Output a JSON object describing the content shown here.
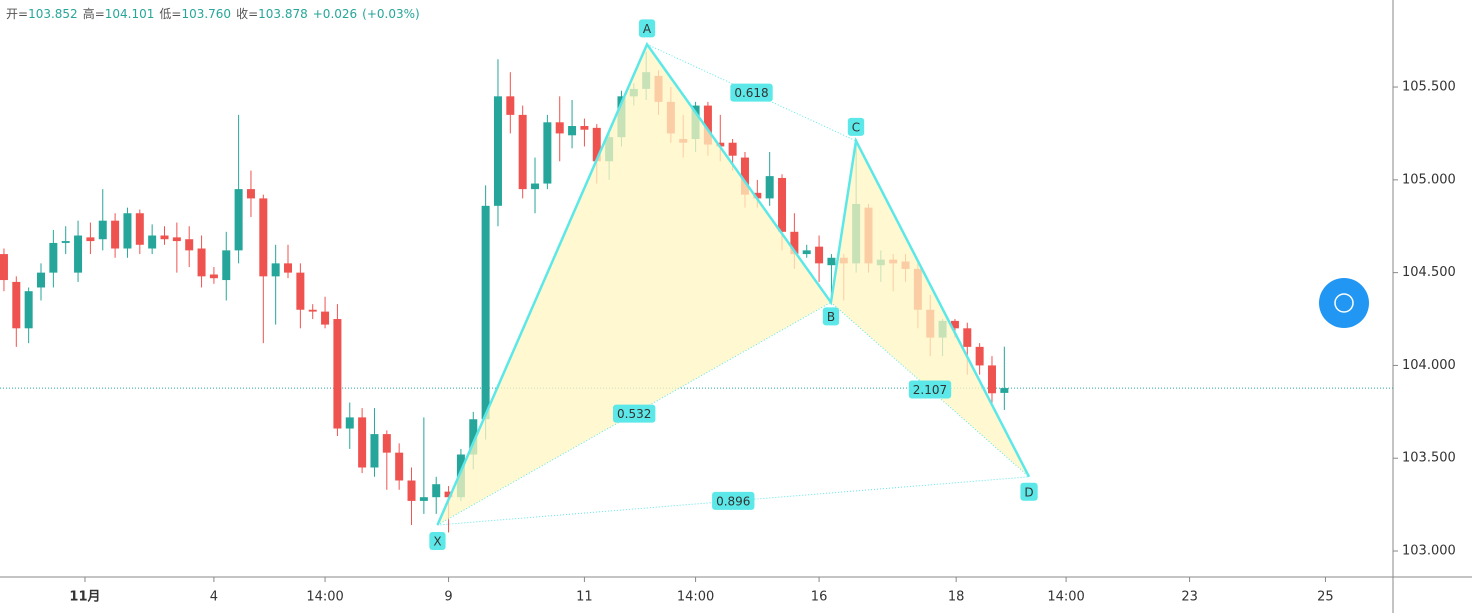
{
  "chart_data": {
    "type": "candlestick",
    "header": [
      {
        "label": "开=",
        "value": "103.852"
      },
      {
        "label": "高=",
        "value": "104.101"
      },
      {
        "label": "低=",
        "value": "103.760"
      },
      {
        "label": "收=",
        "value": "103.878"
      }
    ],
    "change": "+0.026",
    "change_pct": "(+0.03%)",
    "up_color": "#26a69a",
    "down_color": "#ef5350",
    "x": [
      0,
      1,
      2,
      3,
      4,
      5,
      6,
      7,
      8,
      9,
      10,
      11,
      12,
      13,
      14,
      15,
      16,
      17,
      18,
      19,
      20,
      21,
      22,
      23,
      24,
      25,
      26,
      27,
      28,
      29,
      30,
      31,
      32,
      33,
      34,
      35,
      36,
      37,
      38,
      39,
      40,
      41,
      42,
      43,
      44,
      45,
      46,
      47,
      48,
      49,
      50,
      51,
      52,
      53,
      54,
      55,
      56,
      57,
      58,
      59,
      60,
      61,
      62,
      63,
      64,
      65,
      66,
      67,
      68,
      69,
      70,
      71,
      72,
      73,
      74,
      75,
      76,
      77,
      78,
      79,
      80,
      81
    ],
    "open": [
      104.6,
      104.45,
      104.2,
      104.42,
      104.5,
      104.66,
      104.5,
      104.69,
      104.68,
      104.78,
      104.63,
      104.82,
      104.63,
      104.7,
      104.69,
      104.68,
      104.63,
      104.49,
      104.46,
      104.62,
      104.95,
      104.9,
      104.48,
      104.55,
      104.5,
      104.3,
      104.29,
      104.25,
      103.66,
      103.72,
      103.45,
      103.63,
      103.53,
      103.38,
      103.27,
      103.29,
      103.32,
      103.29,
      103.52,
      103.71,
      104.86,
      105.45,
      105.35,
      104.95,
      104.98,
      105.31,
      105.24,
      105.29,
      105.28,
      105.1,
      105.23,
      105.45,
      105.49,
      105.56,
      105.42,
      105.22,
      105.22,
      105.4,
      105.2,
      105.2,
      105.12,
      104.93,
      104.9,
      105.01,
      104.72,
      104.6,
      104.64,
      104.54,
      104.58,
      104.55,
      104.85,
      104.54,
      104.57,
      104.56,
      104.52,
      104.3,
      104.15,
      104.24,
      104.2,
      104.1,
      104.0,
      103.852
    ],
    "high": [
      104.63,
      104.48,
      104.42,
      104.55,
      104.73,
      104.75,
      104.78,
      104.77,
      104.95,
      104.82,
      104.85,
      104.84,
      104.76,
      104.75,
      104.77,
      104.75,
      104.7,
      104.53,
      104.72,
      105.35,
      105.05,
      104.92,
      104.65,
      104.65,
      104.55,
      104.33,
      104.37,
      104.33,
      103.8,
      103.77,
      103.77,
      103.65,
      103.58,
      103.45,
      103.72,
      103.4,
      103.35,
      103.55,
      103.75,
      104.97,
      105.65,
      105.58,
      105.4,
      105.12,
      105.35,
      105.45,
      105.43,
      105.33,
      105.3,
      105.25,
      105.48,
      105.52,
      105.69,
      105.59,
      105.5,
      105.35,
      105.42,
      105.42,
      105.35,
      105.22,
      105.15,
      105.0,
      105.15,
      105.03,
      104.82,
      104.65,
      104.7,
      104.6,
      104.6,
      105.22,
      104.87,
      104.62,
      104.6,
      104.6,
      104.57,
      104.38,
      104.25,
      104.25,
      104.23,
      104.12,
      104.05,
      104.101
    ],
    "low": [
      104.4,
      104.1,
      104.12,
      104.35,
      104.42,
      104.6,
      104.45,
      104.6,
      104.62,
      104.58,
      104.58,
      104.6,
      104.6,
      104.65,
      104.5,
      104.53,
      104.42,
      104.44,
      104.35,
      104.55,
      104.8,
      104.12,
      104.22,
      104.47,
      104.2,
      104.25,
      104.2,
      103.62,
      103.55,
      103.42,
      103.4,
      103.33,
      103.33,
      103.14,
      103.2,
      103.2,
      103.1,
      103.27,
      103.44,
      103.6,
      104.75,
      105.25,
      104.9,
      104.82,
      104.95,
      105.1,
      105.17,
      105.18,
      104.98,
      105.0,
      105.18,
      105.4,
      105.43,
      105.35,
      105.2,
      105.12,
      105.15,
      105.13,
      105.1,
      105.05,
      104.85,
      104.85,
      104.86,
      104.62,
      104.52,
      104.58,
      104.45,
      104.35,
      104.35,
      104.5,
      104.5,
      104.45,
      104.4,
      104.45,
      104.2,
      104.05,
      104.05,
      104.15,
      103.95,
      103.95,
      103.8,
      103.76
    ],
    "close": [
      104.46,
      104.2,
      104.4,
      104.5,
      104.66,
      104.67,
      104.7,
      104.67,
      104.78,
      104.63,
      104.82,
      104.65,
      104.7,
      104.68,
      104.67,
      104.62,
      104.48,
      104.47,
      104.62,
      104.95,
      104.9,
      104.48,
      104.55,
      104.5,
      104.3,
      104.29,
      104.22,
      103.66,
      103.72,
      103.45,
      103.63,
      103.53,
      103.38,
      103.27,
      103.29,
      103.36,
      103.29,
      103.52,
      103.71,
      104.86,
      105.45,
      105.35,
      104.95,
      104.98,
      105.31,
      105.25,
      105.29,
      105.27,
      105.1,
      105.23,
      105.45,
      105.49,
      105.58,
      105.42,
      105.25,
      105.2,
      105.4,
      105.19,
      105.18,
      105.13,
      104.92,
      104.9,
      105.02,
      104.72,
      104.6,
      104.62,
      104.55,
      104.58,
      104.55,
      104.87,
      104.55,
      104.57,
      104.55,
      104.52,
      104.3,
      104.15,
      104.24,
      104.2,
      104.1,
      104.0,
      103.85,
      103.878
    ],
    "last_price": 103.878,
    "xlim": [
      -0.32,
      112.47
    ],
    "xticks": [
      {
        "value": 6.56,
        "label": "11月"
      },
      {
        "value": 17,
        "label": "4"
      },
      {
        "value": 26,
        "label": "14:00"
      },
      {
        "value": 36,
        "label": "9"
      },
      {
        "value": 47,
        "label": "11"
      },
      {
        "value": 56,
        "label": "14:00"
      },
      {
        "value": 66,
        "label": "16"
      },
      {
        "value": 77.1,
        "label": "18"
      },
      {
        "value": 86,
        "label": "14:00"
      },
      {
        "value": 96,
        "label": "23"
      },
      {
        "value": 107,
        "label": "25"
      }
    ],
    "ylim": [
      102.86,
      105.969
    ],
    "yticks": [
      {
        "value": 103,
        "label": "103.000"
      },
      {
        "value": 103.5,
        "label": "103.500"
      },
      {
        "value": 104,
        "label": "104.000"
      },
      {
        "value": 104.5,
        "label": "104.500"
      },
      {
        "value": 105,
        "label": "105.000"
      },
      {
        "value": 105.5,
        "label": "105.500"
      }
    ],
    "pattern": {
      "color": "#5ce8e8",
      "fill": "#fff6c2",
      "points": [
        {
          "label": "X",
          "x": 35.1,
          "y": 103.14
        },
        {
          "label": "A",
          "x": 52.07,
          "y": 105.73
        },
        {
          "label": "B",
          "x": 66.96,
          "y": 104.34
        },
        {
          "label": "C",
          "x": 68.99,
          "y": 105.21
        },
        {
          "label": "D",
          "x": 83.0,
          "y": 103.4
        }
      ],
      "ratios": [
        0.618,
        0.532,
        2.107,
        0.896
      ]
    }
  }
}
